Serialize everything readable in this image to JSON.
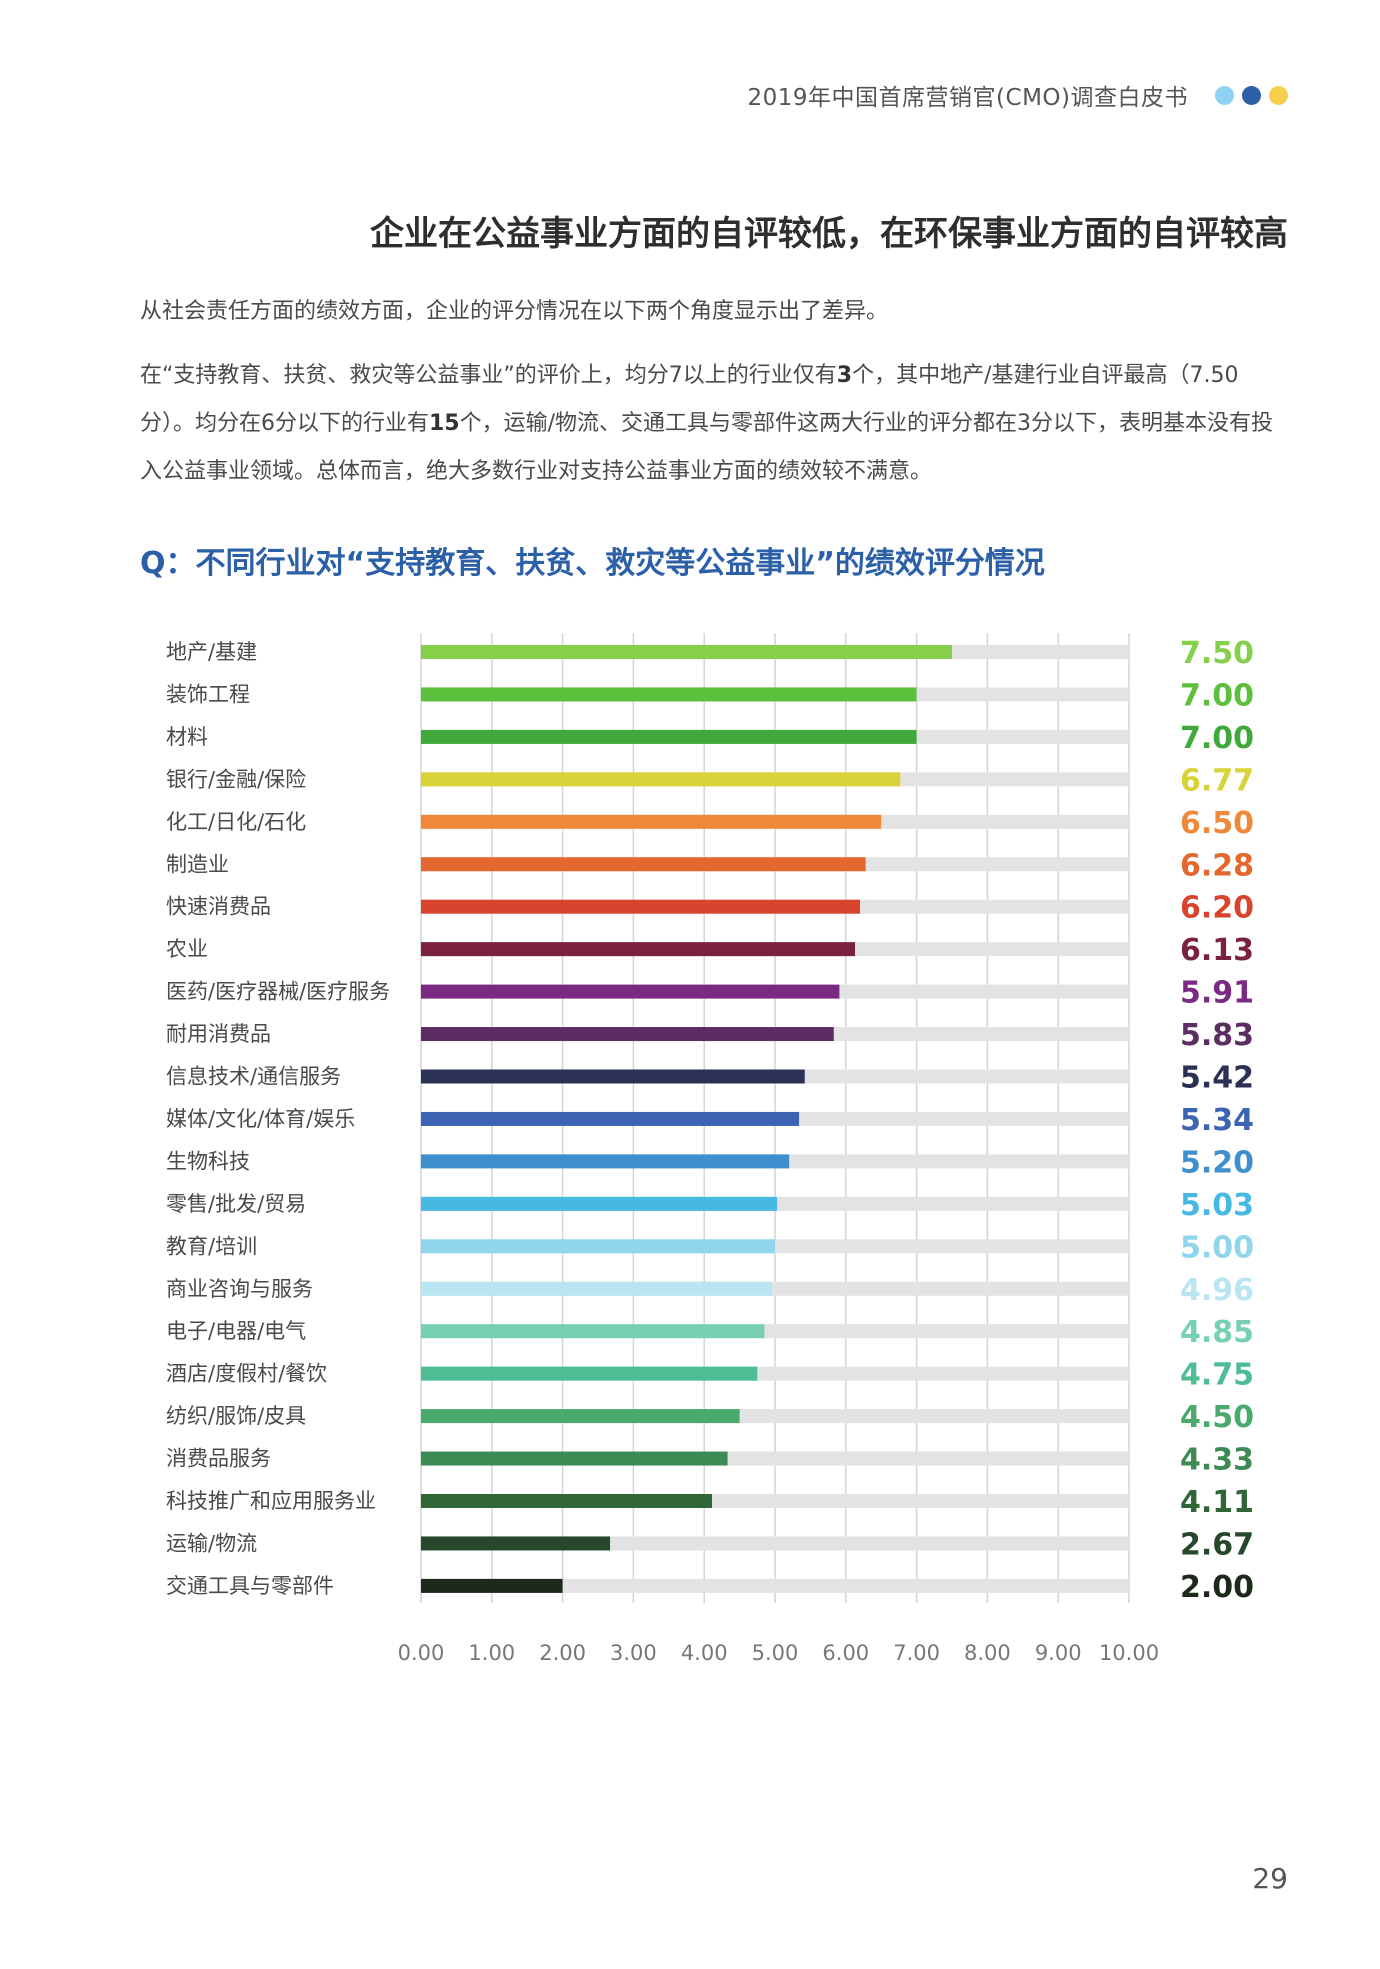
{
  "header": {
    "title": "2019年中国首席营销官(CMO)调查白皮书",
    "dot_colors": [
      "#8ed3f3",
      "#2d5fa6",
      "#f6cf4f"
    ]
  },
  "main_heading": "企业在公益事业方面的自评较低，在环保事业方面的自评较高",
  "paragraph1": "从社会责任方面的绩效方面，企业的评分情况在以下两个角度显示出了差异。",
  "paragraph2": {
    "part1": "在“支持教育、扶贫、救灾等公益事业”的评价上，均分7以上的行业仅有",
    "bold1": "3",
    "part2": "个，其中地产/基建行业自评最高（7.50分）。均分在6分以下的行业有",
    "bold2": "15",
    "part3": "个，运输/物流、交通工具与零部件这两大行业的评分都在3分以下，表明基本没有投入公益事业领域。总体而言，绝大多数行业对支持公益事业方面的绩效较不满意。"
  },
  "question": "Q：不同行业对“支持教育、扶贫、救灾等公益事业”的绩效评分情况",
  "chart_data": {
    "type": "bar",
    "orientation": "horizontal",
    "categories": [
      "地产/基建",
      "装饰工程",
      "材料",
      "银行/金融/保险",
      "化工/日化/石化",
      "制造业",
      "快速消费品",
      "农业",
      "医药/医疗器械/医疗服务",
      "耐用消费品",
      "信息技术/通信服务",
      "媒体/文化/体育/娱乐",
      "生物科技",
      "零售/批发/贸易",
      "教育/培训",
      "商业咨询与服务",
      "电子/电器/电气",
      "酒店/度假村/餐饮",
      "纺织/服饰/皮具",
      "消费品服务",
      "科技推广和应用服务业",
      "运输/物流",
      "交通工具与零部件"
    ],
    "values": [
      7.5,
      7.0,
      7.0,
      6.77,
      6.5,
      6.28,
      6.2,
      6.13,
      5.91,
      5.83,
      5.42,
      5.34,
      5.2,
      5.03,
      5.0,
      4.96,
      4.85,
      4.75,
      4.5,
      4.33,
      4.11,
      2.67,
      2.0
    ],
    "value_labels": [
      "7.50",
      "7.00",
      "7.00",
      "6.77",
      "6.50",
      "6.28",
      "6.20",
      "6.13",
      "5.91",
      "5.83",
      "5.42",
      "5.34",
      "5.20",
      "5.03",
      "5.00",
      "4.96",
      "4.85",
      "4.75",
      "4.50",
      "4.33",
      "4.11",
      "2.67",
      "2.00"
    ],
    "colors": [
      "#86cf4a",
      "#5cc03c",
      "#3fa93b",
      "#d9d33a",
      "#f0883a",
      "#e3672f",
      "#d9442e",
      "#7b2140",
      "#7a2a82",
      "#5b2d62",
      "#2b3155",
      "#3d63b3",
      "#3e8fce",
      "#45b9e1",
      "#8fd6ec",
      "#b9e5f2",
      "#78d0b4",
      "#4dbd94",
      "#4aa96c",
      "#3d8a55",
      "#2f6537",
      "#27482b",
      "#1d2a1b"
    ],
    "track_max": 10,
    "xlim": [
      0,
      10
    ],
    "xticks": [
      "0.00",
      "1.00",
      "2.00",
      "3.00",
      "4.00",
      "5.00",
      "6.00",
      "7.00",
      "8.00",
      "9.00",
      "10.00"
    ],
    "grid": true
  },
  "page_number": "29"
}
